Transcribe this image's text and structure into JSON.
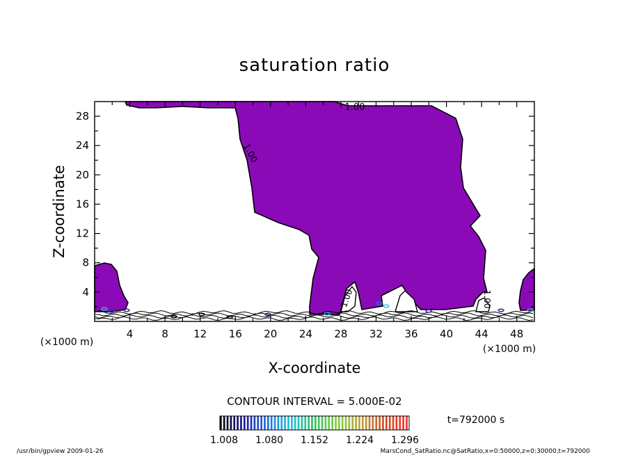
{
  "chart_data": {
    "type": "contour",
    "title": "saturation ratio",
    "xlabel": "X-coordinate",
    "ylabel": "Z-coordinate",
    "x_unit": "(×1000 m)",
    "xlim": [
      0,
      50
    ],
    "ylim": [
      0,
      30
    ],
    "x_ticks": [
      4,
      8,
      12,
      16,
      20,
      24,
      28,
      32,
      36,
      40,
      44,
      48
    ],
    "y_ticks": [
      4,
      8,
      12,
      16,
      20,
      24,
      28
    ],
    "contour_interval": "CONTOUR INTERVAL = 5.000E-02",
    "contour_labels": [
      "1.00",
      "1.00",
      "1.00",
      "1.00"
    ],
    "fill_color": "#8a0ab8",
    "region_value": 1.0,
    "colorbar": {
      "labels": [
        "1.008",
        "1.080",
        "1.152",
        "1.224",
        "1.296"
      ],
      "min": 1.008,
      "max": 1.296,
      "colors": [
        "#000000",
        "#1a1aa0",
        "#1f6fe0",
        "#20c0e0",
        "#30c060",
        "#80d040",
        "#c0a040",
        "#d05020",
        "#ff3030"
      ]
    },
    "time_label": "t=792000 s",
    "grid": false
  },
  "footer": {
    "left": "/usr/bin/gpview  2009-01-26",
    "right": "MarsCond_SatRatio.nc@SatRatio,x=0:50000,z=0:30000,t=792000"
  }
}
